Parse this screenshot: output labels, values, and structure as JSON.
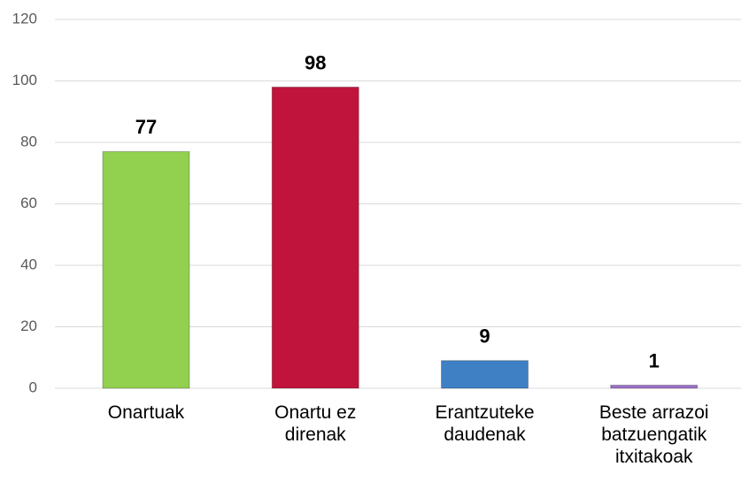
{
  "chart_data": {
    "type": "bar",
    "categories": [
      "Onartuak",
      "Onartu ez direnak",
      "Erantzuteke daudenak",
      "Beste arrazoi batzuengatik itxitakoak"
    ],
    "values": [
      77,
      98,
      9,
      1
    ],
    "colors": [
      "#92d050",
      "#c0143c",
      "#3f7fc4",
      "#9b6fc8"
    ],
    "ylim": [
      0,
      120
    ],
    "yticks": [
      0,
      20,
      40,
      60,
      80,
      100,
      120
    ],
    "grid": true
  }
}
